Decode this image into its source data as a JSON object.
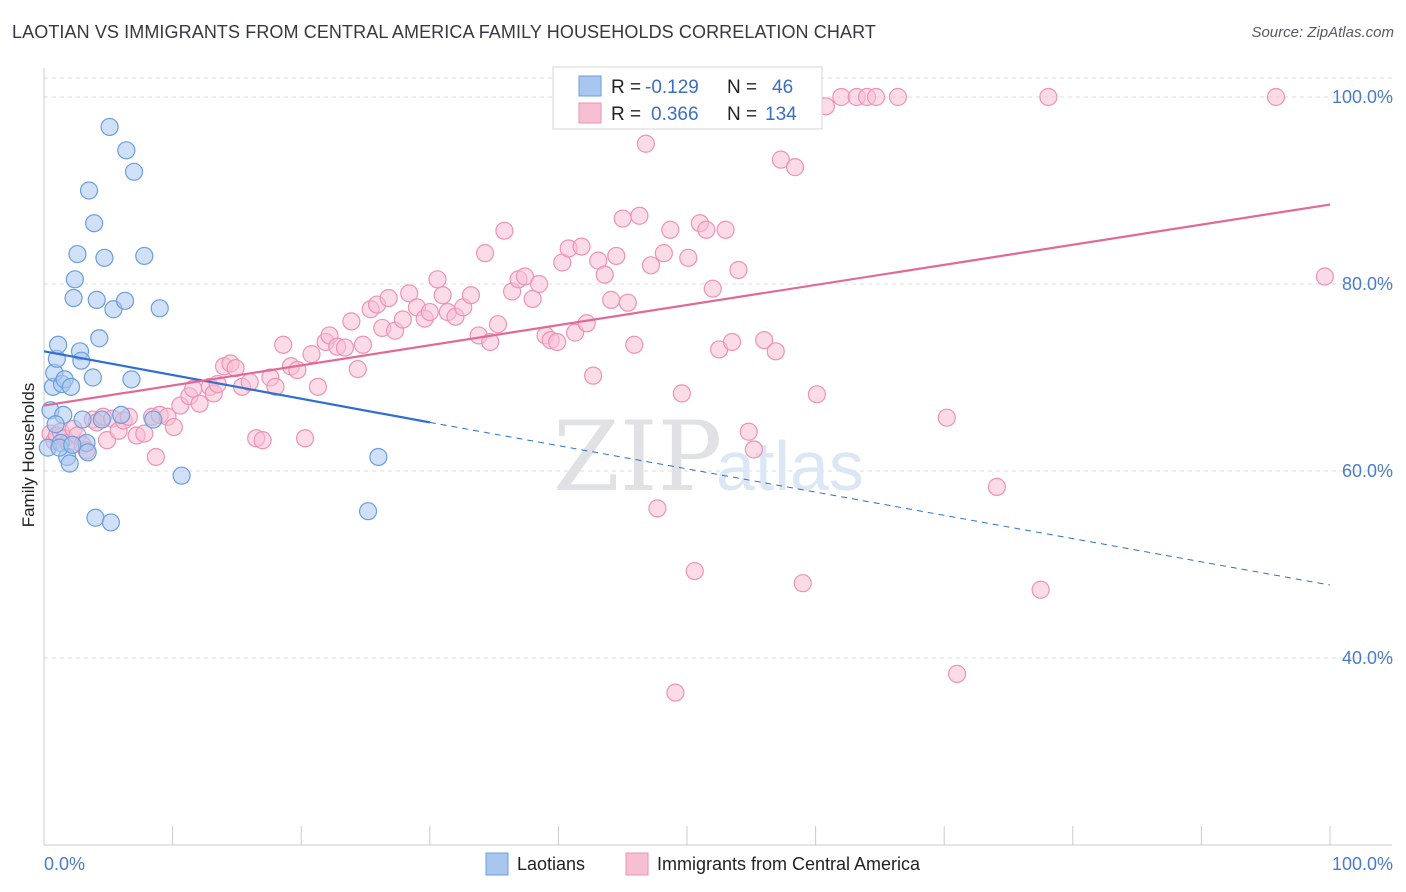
{
  "title": "LAOTIAN VS IMMIGRANTS FROM CENTRAL AMERICA FAMILY HOUSEHOLDS CORRELATION CHART",
  "source": "Source: ZipAtlas.com",
  "colors": {
    "blue_fill": "#a9c6ee",
    "blue_stroke": "#6a9fe0",
    "blue_line": "#2f6fd1",
    "pink_fill": "#f7bfd2",
    "pink_stroke": "#ee93b5",
    "pink_line": "#e06a96",
    "grid": "#d9dde2",
    "axis_text": "#4a7cc9"
  },
  "stats": {
    "r_label": "R =",
    "n_label": "N =",
    "laotians_r": "-0.129",
    "laotians_n": "46",
    "immigrants_r": "0.366",
    "immigrants_n": "134"
  },
  "watermark": {
    "zip": "ZIP",
    "atlas": "atlas"
  },
  "chart_data": {
    "type": "scatter",
    "title": "LAOTIAN VS IMMIGRANTS FROM CENTRAL AMERICA FAMILY HOUSEHOLDS CORRELATION CHART",
    "xlabel": "",
    "ylabel": "Family Households",
    "xlim": [
      0,
      100
    ],
    "ylim": [
      20,
      103
    ],
    "x_tick_labels": [
      "0.0%",
      "100.0%"
    ],
    "y_ticks": [
      40,
      60,
      80,
      100
    ],
    "y_tick_labels": [
      "40.0%",
      "60.0%",
      "80.0%",
      "100.0%"
    ],
    "grid": true,
    "legend_position": "bottom",
    "series": [
      {
        "name": "Laotians",
        "color": "#a9c6ee",
        "trend": {
          "x0": 0,
          "y0": 72.8,
          "x1": 30,
          "y1": 65.2,
          "dashed_to_x": 100,
          "dashed_to_y": 47.8
        },
        "points": [
          [
            0.3,
            62.5
          ],
          [
            0.5,
            66.5
          ],
          [
            0.7,
            69.0
          ],
          [
            0.8,
            70.5
          ],
          [
            1.0,
            72.0
          ],
          [
            1.1,
            73.5
          ],
          [
            1.3,
            63.0
          ],
          [
            1.4,
            69.3
          ],
          [
            1.5,
            66.0
          ],
          [
            1.6,
            69.8
          ],
          [
            1.8,
            61.5
          ],
          [
            2.0,
            60.8
          ],
          [
            2.1,
            69.0
          ],
          [
            2.3,
            78.5
          ],
          [
            2.4,
            80.5
          ],
          [
            2.6,
            83.2
          ],
          [
            2.8,
            72.8
          ],
          [
            2.9,
            71.8
          ],
          [
            3.0,
            65.5
          ],
          [
            3.3,
            63.0
          ],
          [
            3.4,
            62.0
          ],
          [
            3.5,
            90.0
          ],
          [
            3.8,
            70.0
          ],
          [
            3.9,
            86.5
          ],
          [
            4.0,
            55.0
          ],
          [
            4.1,
            78.3
          ],
          [
            4.3,
            74.2
          ],
          [
            4.5,
            65.5
          ],
          [
            4.7,
            82.8
          ],
          [
            5.1,
            96.8
          ],
          [
            5.2,
            54.5
          ],
          [
            5.4,
            77.3
          ],
          [
            6.0,
            66.0
          ],
          [
            6.3,
            78.2
          ],
          [
            6.4,
            94.3
          ],
          [
            6.8,
            69.8
          ],
          [
            7.0,
            92.0
          ],
          [
            7.8,
            83.0
          ],
          [
            8.5,
            65.5
          ],
          [
            9.0,
            77.4
          ],
          [
            10.7,
            59.5
          ],
          [
            25.2,
            55.7
          ],
          [
            26.0,
            61.5
          ],
          [
            1.2,
            62.5
          ],
          [
            0.9,
            65.0
          ],
          [
            2.2,
            62.8
          ]
        ]
      },
      {
        "name": "Immigrants from Central America",
        "color": "#f7bfd2",
        "trend": {
          "x0": 0,
          "y0": 67.0,
          "x1": 100,
          "y1": 88.5
        },
        "points": [
          [
            0.5,
            64.0
          ],
          [
            0.8,
            63.2
          ],
          [
            1.0,
            63.8
          ],
          [
            1.3,
            64.2
          ],
          [
            1.6,
            63.5
          ],
          [
            1.9,
            63.0
          ],
          [
            2.3,
            64.5
          ],
          [
            2.6,
            63.8
          ],
          [
            3.0,
            62.8
          ],
          [
            3.3,
            62.2
          ],
          [
            3.8,
            65.5
          ],
          [
            4.1,
            65.2
          ],
          [
            4.6,
            65.8
          ],
          [
            4.9,
            63.3
          ],
          [
            5.3,
            65.6
          ],
          [
            5.8,
            64.3
          ],
          [
            6.2,
            65.4
          ],
          [
            6.6,
            65.8
          ],
          [
            7.2,
            63.8
          ],
          [
            7.8,
            64.0
          ],
          [
            8.4,
            65.8
          ],
          [
            8.7,
            61.5
          ],
          [
            9.0,
            66.0
          ],
          [
            9.6,
            65.8
          ],
          [
            10.1,
            64.7
          ],
          [
            10.6,
            67.0
          ],
          [
            11.3,
            68.0
          ],
          [
            11.6,
            68.8
          ],
          [
            12.1,
            67.2
          ],
          [
            12.9,
            69.0
          ],
          [
            13.2,
            68.3
          ],
          [
            13.5,
            69.3
          ],
          [
            14.0,
            71.2
          ],
          [
            14.5,
            71.5
          ],
          [
            14.9,
            71.0
          ],
          [
            15.4,
            69.0
          ],
          [
            16.0,
            69.5
          ],
          [
            16.5,
            63.5
          ],
          [
            17.0,
            63.3
          ],
          [
            17.6,
            70.0
          ],
          [
            18.0,
            69.0
          ],
          [
            18.6,
            73.5
          ],
          [
            19.2,
            71.2
          ],
          [
            19.7,
            70.8
          ],
          [
            20.3,
            63.5
          ],
          [
            20.8,
            72.5
          ],
          [
            21.3,
            69.0
          ],
          [
            21.9,
            73.8
          ],
          [
            22.2,
            74.5
          ],
          [
            22.8,
            73.3
          ],
          [
            23.4,
            73.2
          ],
          [
            23.9,
            76.0
          ],
          [
            24.4,
            70.9
          ],
          [
            24.8,
            73.5
          ],
          [
            25.4,
            77.3
          ],
          [
            25.9,
            77.8
          ],
          [
            26.3,
            75.3
          ],
          [
            26.8,
            78.5
          ],
          [
            27.3,
            75.0
          ],
          [
            27.9,
            76.2
          ],
          [
            28.4,
            79.0
          ],
          [
            29.0,
            77.5
          ],
          [
            29.6,
            76.3
          ],
          [
            30.0,
            77.0
          ],
          [
            30.6,
            80.5
          ],
          [
            31.0,
            78.8
          ],
          [
            31.4,
            77.0
          ],
          [
            32.0,
            76.5
          ],
          [
            32.6,
            77.5
          ],
          [
            33.2,
            78.8
          ],
          [
            33.8,
            74.5
          ],
          [
            34.3,
            83.3
          ],
          [
            34.7,
            73.8
          ],
          [
            35.3,
            75.7
          ],
          [
            35.8,
            85.7
          ],
          [
            36.4,
            79.2
          ],
          [
            36.9,
            80.5
          ],
          [
            37.4,
            80.8
          ],
          [
            38.0,
            78.4
          ],
          [
            38.5,
            80.0
          ],
          [
            39.0,
            74.5
          ],
          [
            39.4,
            74.0
          ],
          [
            39.9,
            73.8
          ],
          [
            40.3,
            82.3
          ],
          [
            40.8,
            83.8
          ],
          [
            41.3,
            74.8
          ],
          [
            41.8,
            84.0
          ],
          [
            42.2,
            75.8
          ],
          [
            42.7,
            70.2
          ],
          [
            43.1,
            82.5
          ],
          [
            43.6,
            81.0
          ],
          [
            44.1,
            78.3
          ],
          [
            44.5,
            83.0
          ],
          [
            45.0,
            87.0
          ],
          [
            45.4,
            78.0
          ],
          [
            45.9,
            73.5
          ],
          [
            46.3,
            87.3
          ],
          [
            46.8,
            95.0
          ],
          [
            47.2,
            82.0
          ],
          [
            47.7,
            56.0
          ],
          [
            48.2,
            83.3
          ],
          [
            48.7,
            85.8
          ],
          [
            49.1,
            36.3
          ],
          [
            49.6,
            68.3
          ],
          [
            50.1,
            82.8
          ],
          [
            50.6,
            49.3
          ],
          [
            51.0,
            86.5
          ],
          [
            51.5,
            85.8
          ],
          [
            52.0,
            79.5
          ],
          [
            52.5,
            73.0
          ],
          [
            53.0,
            85.8
          ],
          [
            53.5,
            73.8
          ],
          [
            54.0,
            81.5
          ],
          [
            54.8,
            64.2
          ],
          [
            55.2,
            62.3
          ],
          [
            56.0,
            74.0
          ],
          [
            56.9,
            72.8
          ],
          [
            57.3,
            93.3
          ],
          [
            58.4,
            92.5
          ],
          [
            59.0,
            48.0
          ],
          [
            60.1,
            68.2
          ],
          [
            60.8,
            99.0
          ],
          [
            62.0,
            100.0
          ],
          [
            63.2,
            100.0
          ],
          [
            64.0,
            100.0
          ],
          [
            64.7,
            100.0
          ],
          [
            66.4,
            100.0
          ],
          [
            70.2,
            65.7
          ],
          [
            71.0,
            38.3
          ],
          [
            74.1,
            58.3
          ],
          [
            77.5,
            47.3
          ],
          [
            78.1,
            100.0
          ],
          [
            95.8,
            100.0
          ],
          [
            99.6,
            80.8
          ]
        ]
      }
    ]
  }
}
